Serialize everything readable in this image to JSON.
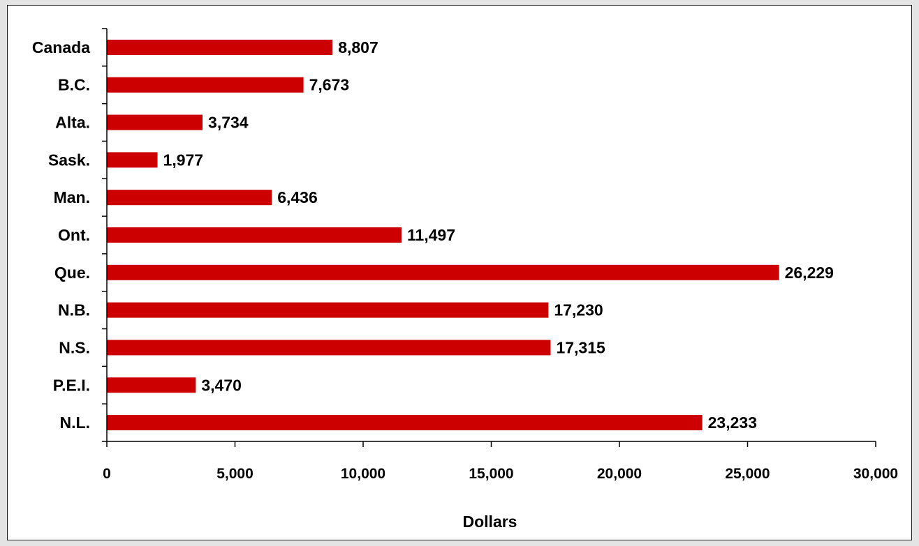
{
  "chart_data": {
    "type": "bar",
    "orientation": "horizontal",
    "title": "",
    "xlabel": "Dollars",
    "ylabel": "",
    "categories": [
      "Canada",
      "B.C.",
      "Alta.",
      "Sask.",
      "Man.",
      "Ont.",
      "Que.",
      "N.B.",
      "N.S.",
      "P.E.I.",
      "N.L."
    ],
    "values": [
      8807,
      7673,
      3734,
      1977,
      6436,
      11497,
      26229,
      17230,
      17315,
      3470,
      23233
    ],
    "value_labels": [
      "8,807",
      "7,673",
      "3,734",
      "1,977",
      "6,436",
      "11,497",
      "26,229",
      "17,230",
      "17,315",
      "3,470",
      "23,233"
    ],
    "xlim": [
      0,
      30000
    ],
    "xticks": [
      0,
      5000,
      10000,
      15000,
      20000,
      25000,
      30000
    ],
    "xtick_labels": [
      "0",
      "5,000",
      "10,000",
      "15,000",
      "20,000",
      "25,000",
      "30,000"
    ],
    "bar_color": "#cc0000",
    "grid": false,
    "legend": "none"
  }
}
